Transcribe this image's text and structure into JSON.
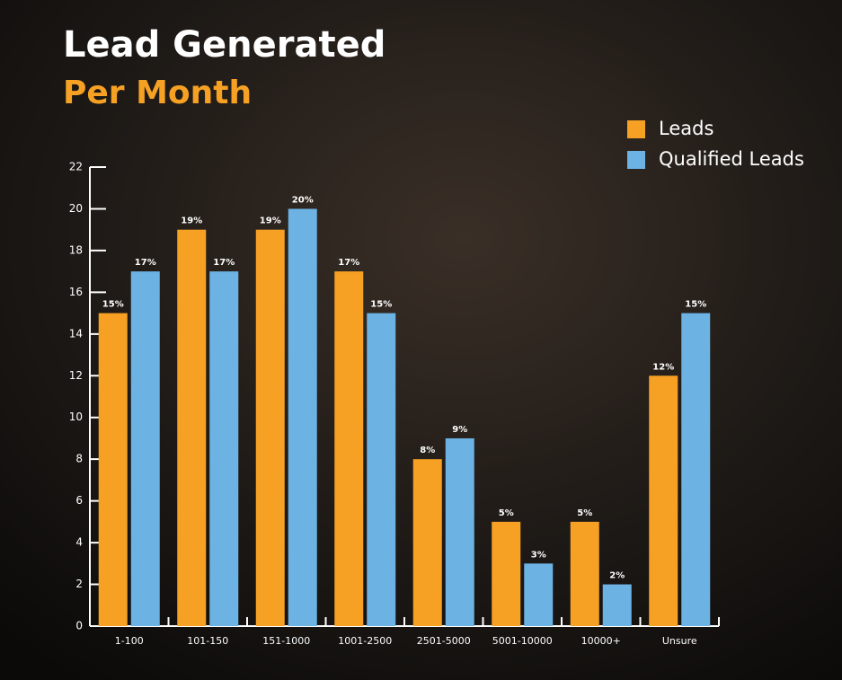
{
  "chart_data": {
    "type": "bar",
    "title": "Lead Generated",
    "subtitle": "Per Month",
    "categories": [
      "1-100",
      "101-150",
      "151-1000",
      "1001-2500",
      "2501-5000",
      "5001-10000",
      "10000+",
      "Unsure"
    ],
    "series": [
      {
        "name": "Leads",
        "color": "#f6a124",
        "values": [
          15,
          19,
          19,
          17,
          8,
          5,
          5,
          12
        ],
        "value_labels": [
          "15%",
          "19%",
          "19%",
          "17%",
          "8%",
          "5%",
          "5%",
          "12%"
        ]
      },
      {
        "name": "Qualified Leads",
        "color": "#6cb2e3",
        "values": [
          17,
          17,
          20,
          15,
          9,
          3,
          2,
          15
        ],
        "value_labels": [
          "17%",
          "17%",
          "20%",
          "15%",
          "9%",
          "3%",
          "2%",
          "15%"
        ]
      }
    ],
    "ylim": [
      0,
      22
    ],
    "yticks": [
      0,
      2,
      4,
      6,
      8,
      10,
      12,
      14,
      16,
      18,
      20,
      22
    ],
    "legend": "top-right"
  }
}
